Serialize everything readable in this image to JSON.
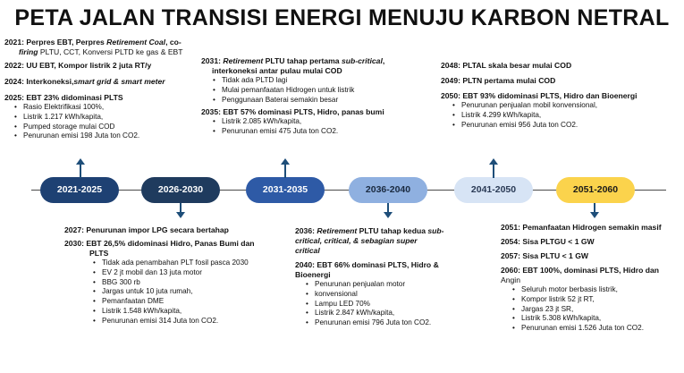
{
  "title": "PETA JALAN TRANSISI ENERGI MENUJU KARBON NETRAL",
  "colors": {
    "p1": "#1e4173",
    "p2": "#1f3b5e",
    "p3": "#2e5aa6",
    "p4": "#8fb0e0",
    "p5": "#d7e4f5",
    "p6": "#fbd34c",
    "arrow": "#1e4e79"
  },
  "periods": [
    {
      "label": "2021-2025"
    },
    {
      "label": "2026-2030"
    },
    {
      "label": "2031-2035"
    },
    {
      "label": "2036-2040"
    },
    {
      "label": "2041-2050"
    },
    {
      "label": "2051-2060"
    }
  ],
  "p2021": {
    "l1a": "2021: Perpres EBT, Perpres ",
    "l1b": "Retirement Coal",
    "l1c": ", co-",
    "l2a": "firing",
    "l2b": " PLTU, CCT, Konversi PLTD ke gas & EBT",
    "l3": "2022: UU EBT,  Kompor listrik 2 juta RT/y",
    "l4a": "2024: Interkoneksi,",
    "l4b": "smart grid & smart meter",
    "l5": "2025: EBT 23% didominasi  PLTS",
    "items": [
      "Rasio Elektrifikasi 100%,",
      "Listrik 1.217 kWh/kapita,",
      "Pumped storage mulai COD",
      "Penurunan emisi 198 Juta ton CO2."
    ]
  },
  "p2026": {
    "l1": "2027: Penurunan impor LPG secara bertahap",
    "l2a": "2030: EBT 26,5% didominasi  Hidro, Panas Bumi dan",
    "l2b": "PLTS",
    "items": [
      "Tidak ada penambahan PLT fosil pasca 2030",
      "EV 2 jt mobil dan 13 juta motor",
      "BBG 300 rb",
      "Jargas untuk 10 juta rumah,",
      "Pemanfaatan DME",
      "Listrik 1.548 kWh/kapita,",
      "Penurunan emisi 314 Juta ton CO2."
    ]
  },
  "p2031": {
    "l1a": "2031: ",
    "l1b": "Retirement",
    "l1c": " PLTU tahap pertama ",
    "l1d": "sub-critical",
    "l2": "interkoneksi antar pulau mulai COD",
    "items1": [
      "Tidak ada PLTD lagi",
      "Mulai pemanfaatan Hidrogen untuk listrik",
      "Penggunaan Baterai semakin besar"
    ],
    "l3": "2035: EBT 57% dominasi PLTS, Hidro, panas bumi",
    "items2": [
      "Listrik 2.085 kWh/kapita,",
      "Penurunan emisi 475 Juta ton CO2."
    ]
  },
  "p2036": {
    "l1a": "2036: ",
    "l1b": "Retirement",
    "l1c": " PLTU tahap kedua ",
    "l1d": "sub-",
    "l2": "critical, critical, & sebagian super",
    "l3": "critical",
    "l4": "2040: EBT 66% dominasi PLTS, Hidro &",
    "l5": "Bioenergi",
    "items": [
      "Penurunan penjualan motor",
      "konvensional",
      "Lampu  LED 70%",
      "Listrik 2.847 kWh/kapita,",
      "Penurunan emisi 796 Juta ton CO2."
    ]
  },
  "p2041": {
    "l1": "2048: PLTAL skala besar mulai COD",
    "l2": "2049: PLTN pertama mulai COD",
    "l3": "2050: EBT 93% didominasi PLTS, Hidro dan Bioenergi",
    "items": [
      "Penurunan penjualan mobil konvensional,",
      "Listrik 4.299 kWh/kapita,",
      "Penurunan emisi 956 Juta ton CO2."
    ]
  },
  "p2051": {
    "l1": "2051: Pemanfaatan Hidrogen semakin masif",
    "l2": "2054: Sisa PLTGU < 1 GW",
    "l3": "2057: Sisa PLTU < 1 GW",
    "l4a": "2060: EBT 100%, dominasi PLTS, Hidro dan",
    "l4b": "Angin",
    "items": [
      "Seluruh motor berbasis listrik,",
      "Kompor listrik 52 jt RT,",
      "Jargas 23 jt SR,",
      "Listrik 5.308 kWh/kapita,",
      "Penurunan emisi 1.526 Juta ton CO2."
    ]
  }
}
